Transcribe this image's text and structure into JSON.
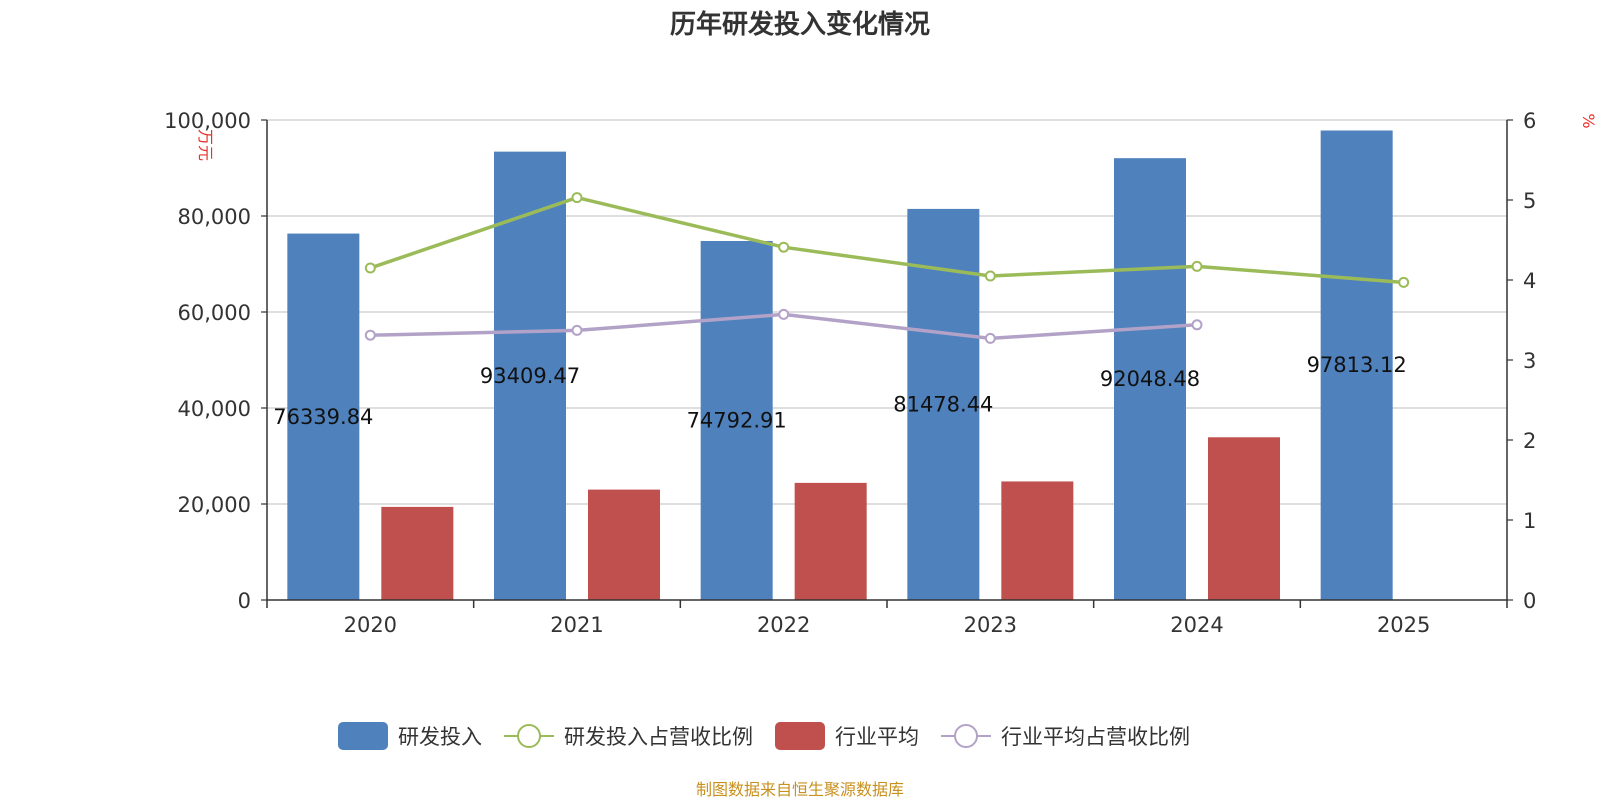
{
  "chart_data": {
    "type": "bar",
    "title": "历年研发投入变化情况",
    "categories": [
      "2020",
      "2021",
      "2022",
      "2023",
      "2024",
      "2025"
    ],
    "y_left": {
      "unit": "万元",
      "ylim": [
        0,
        100000
      ],
      "ticks": [
        0,
        20000,
        40000,
        60000,
        80000,
        100000
      ],
      "tick_labels": [
        "0",
        "20,000",
        "40,000",
        "60,000",
        "80,000",
        "100,000"
      ]
    },
    "y_right": {
      "unit": "%",
      "ylim": [
        0,
        6
      ],
      "ticks": [
        0,
        1,
        2,
        3,
        4,
        5,
        6
      ],
      "tick_labels": [
        "0",
        "1",
        "2",
        "3",
        "4",
        "5",
        "6"
      ]
    },
    "grid": true,
    "legend_position": "bottom",
    "series": [
      {
        "name": "研发投入",
        "type": "bar",
        "axis": "left",
        "color": "#4f81bd",
        "values": [
          76339.84,
          93409.47,
          74792.91,
          81478.44,
          92048.48,
          97813.12
        ],
        "labels": [
          "76339.84",
          "93409.47",
          "74792.91",
          "81478.44",
          "92048.48",
          "97813.12"
        ]
      },
      {
        "name": "研发投入占营收比例",
        "type": "line",
        "axis": "right",
        "color": "#9bbb59",
        "values": [
          4.15,
          5.03,
          4.41,
          4.05,
          4.17,
          3.97
        ]
      },
      {
        "name": "行业平均",
        "type": "bar",
        "axis": "left",
        "color": "#c0504d",
        "values": [
          19400,
          23000,
          24400,
          24700,
          33900,
          null
        ]
      },
      {
        "name": "行业平均占营收比例",
        "type": "line",
        "axis": "right",
        "color": "#b3a2c7",
        "values": [
          3.31,
          3.37,
          3.57,
          3.27,
          3.44,
          null
        ]
      }
    ],
    "source": "制图数据来自恒生聚源数据库"
  }
}
